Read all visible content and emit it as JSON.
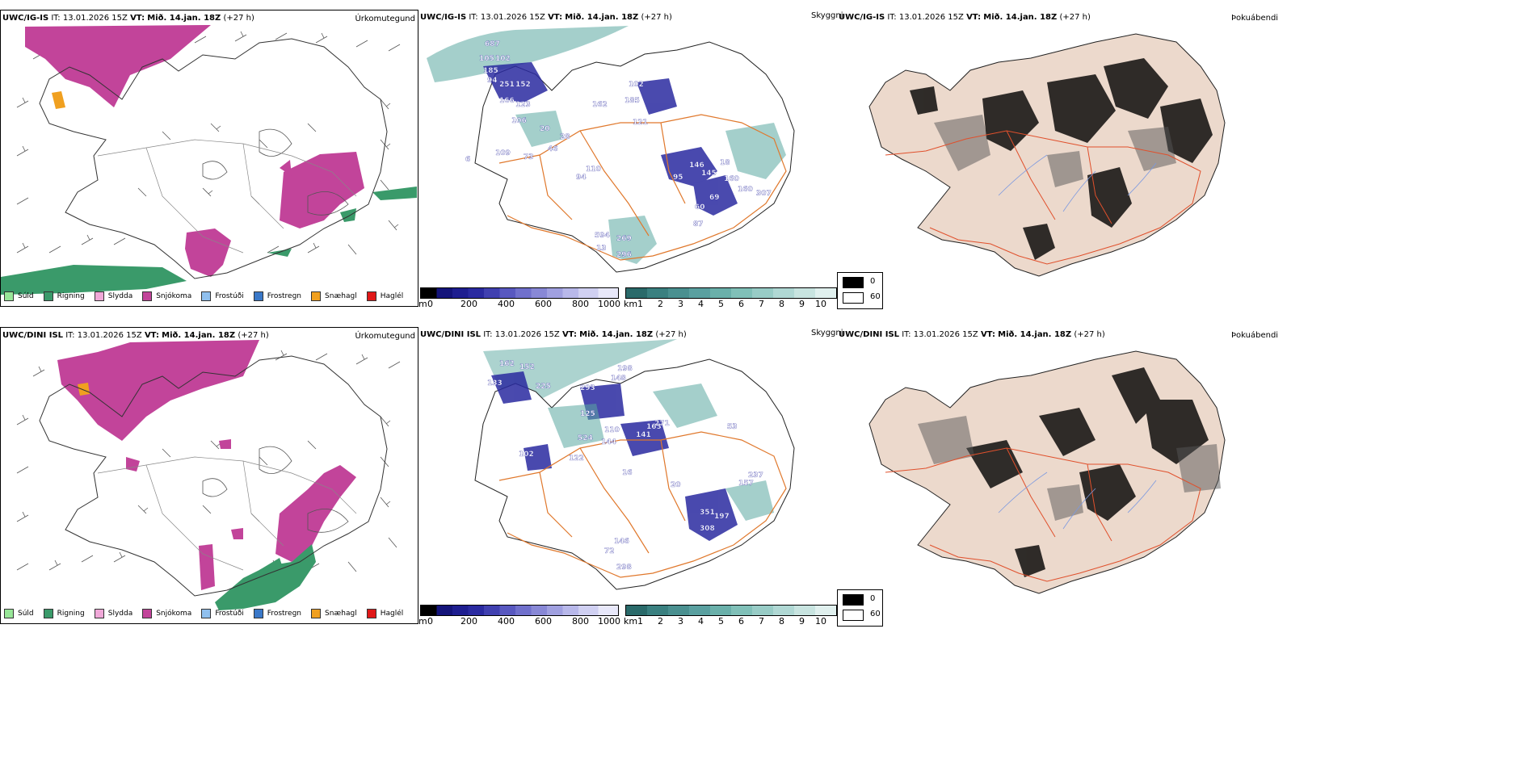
{
  "rows": [
    {
      "model_label": "UWC/IG-IS",
      "it_label": "IT:",
      "it_value": "13.01.2026 15Z",
      "vt_label": "VT:",
      "vt_value": "Mið. 14.jan. 18Z",
      "lead": "(+27 h)",
      "titles": {
        "precip": "Úrkomutegund",
        "cloud": "Skyggni",
        "dew": "Þokuábendi"
      },
      "visibility_labels": [
        "687",
        "105",
        "102",
        "185",
        "251",
        "152",
        "94",
        "166",
        "123",
        "106",
        "20",
        "73",
        "109",
        "6",
        "46",
        "28",
        "162",
        "185",
        "102",
        "121",
        "94",
        "110",
        "95",
        "146",
        "145",
        "18",
        "160",
        "160",
        "307",
        "69",
        "60",
        "87",
        "594",
        "269",
        "13",
        "296"
      ]
    },
    {
      "model_label": "UWC/DINI ISL",
      "it_label": "IT:",
      "it_value": "13.01.2026 15Z",
      "vt_label": "VT:",
      "vt_value": "Mið. 14.jan. 18Z",
      "lead": "(+27 h)",
      "titles": {
        "precip": "Úrkomutegund",
        "cloud": "Skyggni",
        "dew": "Þokuábendi"
      },
      "visibility_labels": [
        "162",
        "152",
        "133",
        "225",
        "293",
        "198",
        "148",
        "125",
        "102",
        "524",
        "110",
        "122",
        "144",
        "141",
        "163",
        "271",
        "16",
        "53",
        "20",
        "157",
        "237",
        "197",
        "351",
        "308",
        "146",
        "72",
        "298"
      ]
    }
  ],
  "precip_legend": [
    {
      "label": "Súld",
      "color": "#98e698"
    },
    {
      "label": "Rigning",
      "color": "#3a9a6a"
    },
    {
      "label": "Slydda",
      "color": "#f0a8d8"
    },
    {
      "label": "Snjókoma",
      "color": "#c2449a"
    },
    {
      "label": "Frostúði",
      "color": "#90c0ee"
    },
    {
      "label": "Frostregn",
      "color": "#3a78c8"
    },
    {
      "label": "Snæhagl",
      "color": "#f0a020"
    },
    {
      "label": "Haglél",
      "color": "#e01818"
    }
  ],
  "cloud_base_bar": {
    "unit": "m",
    "ticks": [
      "0",
      "200",
      "400",
      "600",
      "800",
      "1000"
    ]
  },
  "visibility_bar": {
    "unit": "km",
    "ticks": [
      "1",
      "2",
      "3",
      "4",
      "5",
      "6",
      "7",
      "8",
      "9",
      "10"
    ]
  },
  "fog_legend": [
    {
      "label": "0",
      "color": "#000000"
    },
    {
      "label": "60",
      "color": "#ffffff"
    }
  ],
  "colors": {
    "snow": "#c2449a",
    "rain": "#3a9a6a",
    "sleet_ice": "#f0a020",
    "cloud_base": "#2a2aa0",
    "visibility": "#5aa8a0",
    "roads": "#e0782c",
    "terrain": "#ecd9cc",
    "fog": "#000000"
  }
}
